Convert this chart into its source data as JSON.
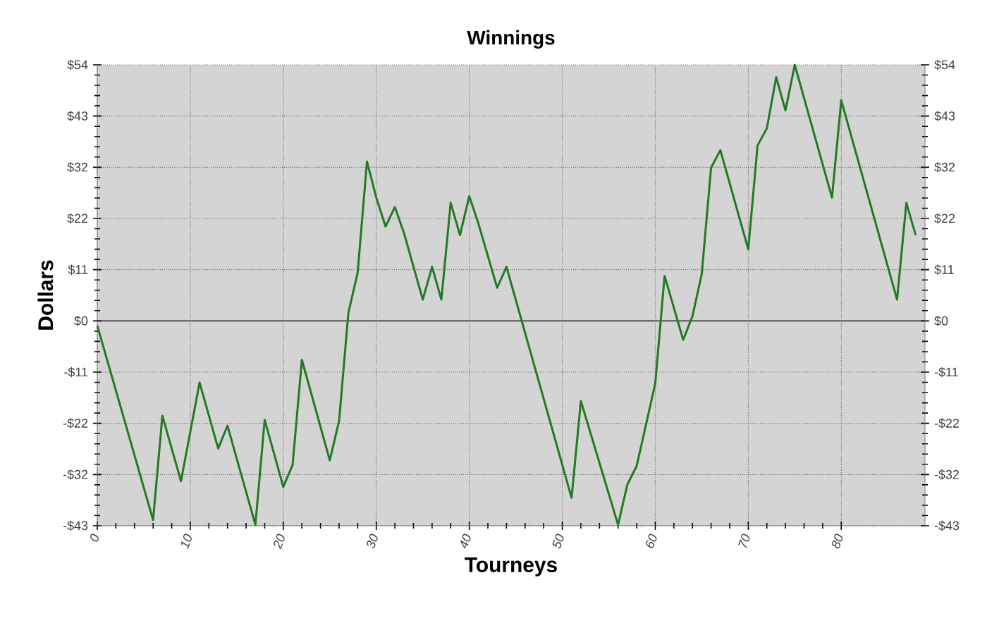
{
  "chart_data": {
    "type": "line",
    "title": "Winnings",
    "xlabel": "Tourneys",
    "ylabel": "Dollars",
    "series": [
      {
        "color": "#217a21",
        "x": [
          0,
          6,
          7,
          9,
          11,
          13,
          14,
          17,
          18,
          20,
          21,
          22,
          25,
          26,
          27,
          28,
          29,
          30,
          31,
          32,
          33,
          35,
          36,
          37,
          38,
          39,
          40,
          41,
          43,
          44,
          51,
          52,
          56,
          57,
          58,
          60,
          61,
          63,
          64,
          65,
          66,
          67,
          70,
          71,
          72,
          73,
          74,
          75,
          79,
          80,
          86,
          87,
          88
        ],
        "values": [
          -1,
          -42,
          -20,
          -33.8,
          -13,
          -26.9,
          -22.1,
          -43,
          -20.9,
          -35,
          -30.4,
          -8.2,
          -29.4,
          -21.1,
          1.7,
          10.2,
          33.6,
          26,
          19.9,
          24,
          18.4,
          4.5,
          11.4,
          4.5,
          24.9,
          18.1,
          26.3,
          20.4,
          7,
          11.4,
          -37.3,
          -16.9,
          -43,
          -34.5,
          -30.6,
          -13.2,
          9.5,
          -4,
          1,
          9.9,
          32.3,
          36,
          15.1,
          37,
          40.6,
          51.4,
          44.4,
          54,
          26,
          46.5,
          4.5,
          24.9,
          18.1
        ]
      }
    ],
    "xlim": [
      0,
      89
    ],
    "xticks": [
      0,
      10,
      20,
      30,
      40,
      50,
      60,
      70,
      80
    ],
    "ylim": [
      -43.2,
      54
    ],
    "yticks": [
      {
        "value": -43.2,
        "label": "-$43"
      },
      {
        "value": -32.4,
        "label": "-$32"
      },
      {
        "value": -21.6,
        "label": "-$22"
      },
      {
        "value": -10.8,
        "label": "-$11"
      },
      {
        "value": 0,
        "label": "$0"
      },
      {
        "value": 10.8,
        "label": "$11"
      },
      {
        "value": 21.6,
        "label": "$22"
      },
      {
        "value": 32.4,
        "label": "$32"
      },
      {
        "value": 43.2,
        "label": "$43"
      },
      {
        "value": 54,
        "label": "$54"
      }
    ],
    "y2lim": [
      -43.2,
      54
    ],
    "y2ticks": [
      {
        "value": -43.2,
        "label": "-$43"
      },
      {
        "value": -32.4,
        "label": "-$32"
      },
      {
        "value": -21.6,
        "label": "-$22"
      },
      {
        "value": -10.8,
        "label": "-$11"
      },
      {
        "value": 0,
        "label": "$0"
      },
      {
        "value": 10.8,
        "label": "$11"
      },
      {
        "value": 21.6,
        "label": "$22"
      },
      {
        "value": 32.4,
        "label": "$32"
      },
      {
        "value": 43.2,
        "label": "$43"
      },
      {
        "value": 54,
        "label": "$54"
      }
    ],
    "ref_lines": [
      {
        "axis": "y",
        "value": 0,
        "color": "#000000"
      }
    ],
    "grid": true,
    "marker": "none",
    "line_style": "solid"
  }
}
